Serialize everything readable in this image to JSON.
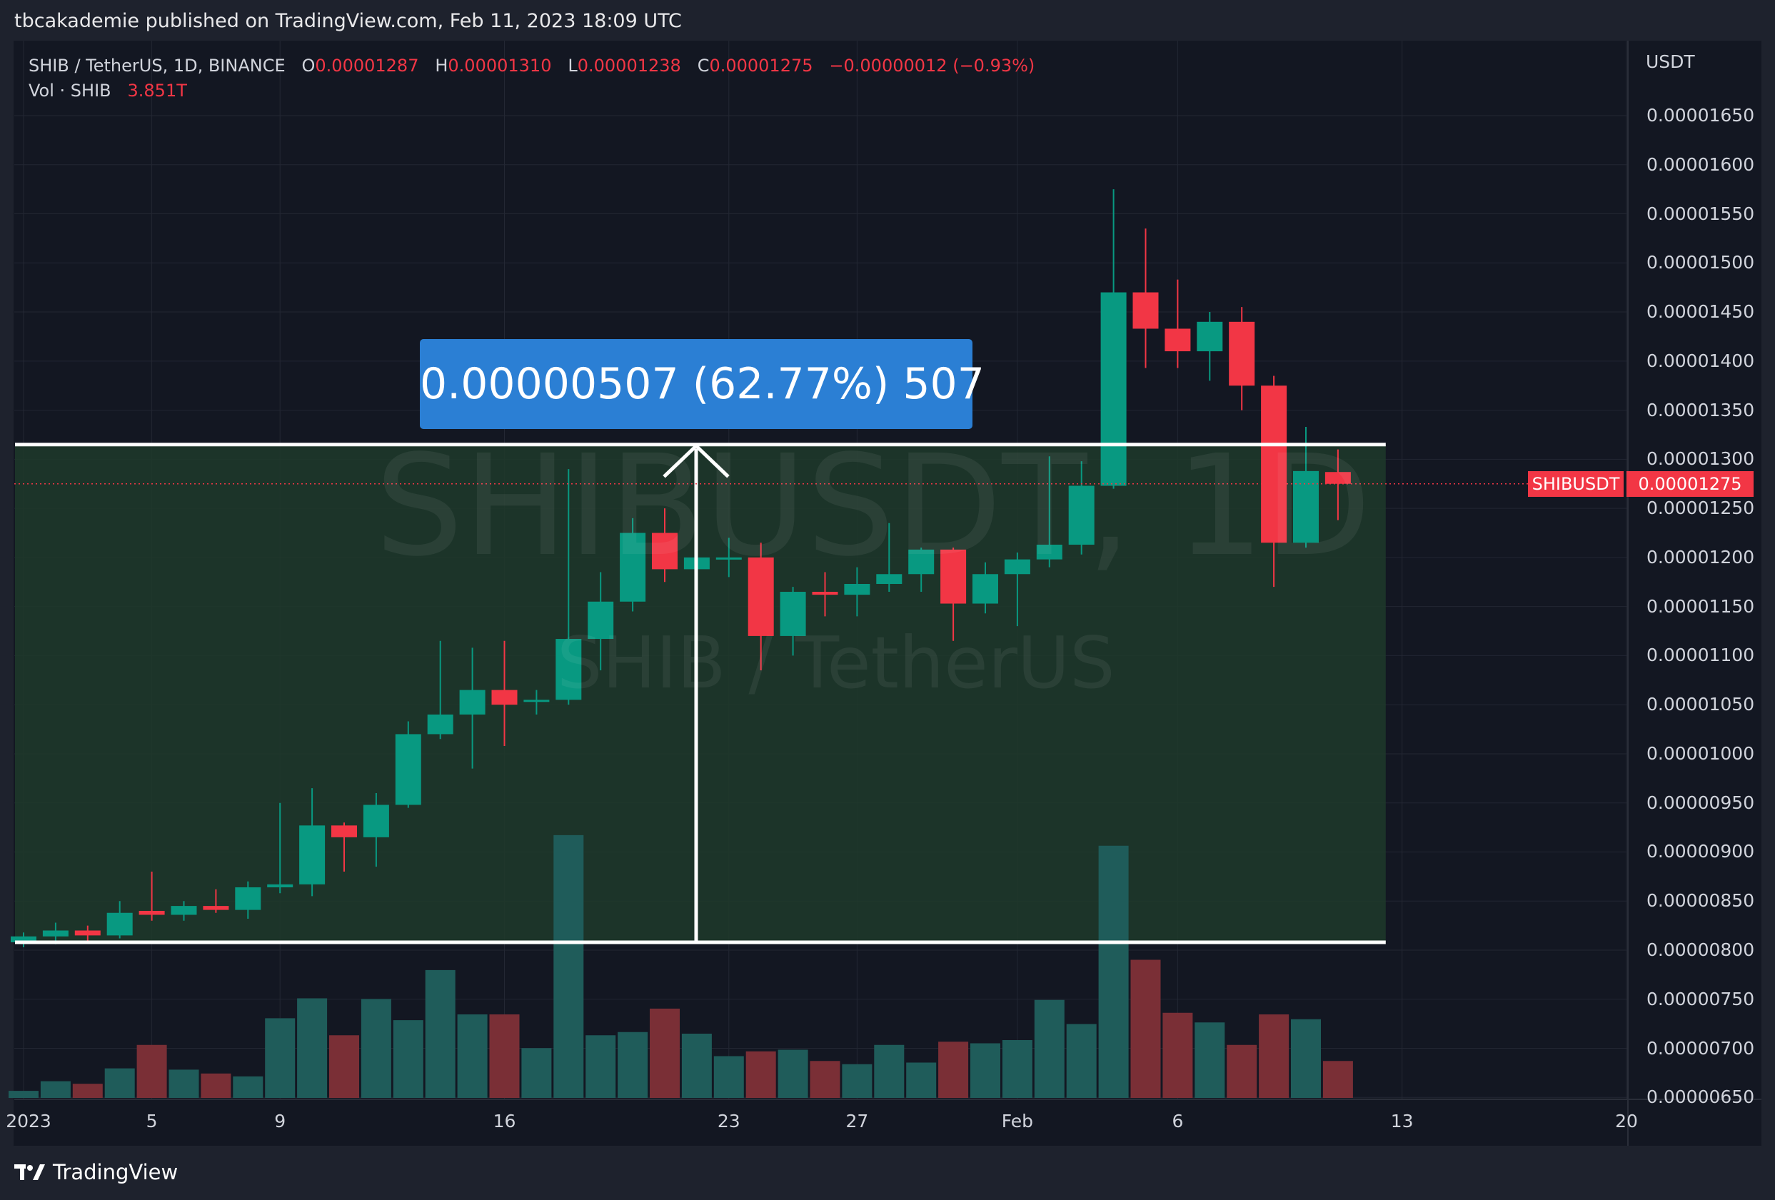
{
  "header": {
    "publisher_line": "tbcakademie published on TradingView.com, Feb 11, 2023 18:09 UTC"
  },
  "legend": {
    "symbol": "SHIB / TetherUS, 1D, BINANCE",
    "o_label": "O",
    "o_value": "0.00001287",
    "h_label": "H",
    "h_value": "0.00001310",
    "l_label": "L",
    "l_value": "0.00001238",
    "c_label": "C",
    "c_value": "0.00001275",
    "change": "−0.00000012 (−0.93%)",
    "vol_label": "Vol · SHIB",
    "vol_value": "3.851T"
  },
  "watermark": {
    "symbol": "SHIBUSDT, 1D",
    "description": "SHIB / TetherUS"
  },
  "measure_tool": {
    "label": "0.00000507 (62.77%) 507",
    "from_price": 8.08e-06,
    "to_price": 1.315e-05,
    "from_bar": 0,
    "to_bar": 42,
    "fill_color": "#1f3a2a"
  },
  "price_axis": {
    "currency": "USDT",
    "ticks": [
      {
        "value": 1.65e-05,
        "label": "0.00001650"
      },
      {
        "value": 1.6e-05,
        "label": "0.00001600"
      },
      {
        "value": 1.55e-05,
        "label": "0.00001550"
      },
      {
        "value": 1.5e-05,
        "label": "0.00001500"
      },
      {
        "value": 1.45e-05,
        "label": "0.00001450"
      },
      {
        "value": 1.4e-05,
        "label": "0.00001400"
      },
      {
        "value": 1.35e-05,
        "label": "0.00001350"
      },
      {
        "value": 1.3e-05,
        "label": "0.00001300"
      },
      {
        "value": 1.25e-05,
        "label": "0.00001250"
      },
      {
        "value": 1.2e-05,
        "label": "0.00001200"
      },
      {
        "value": 1.15e-05,
        "label": "0.00001150"
      },
      {
        "value": 1.1e-05,
        "label": "0.00001100"
      },
      {
        "value": 1.05e-05,
        "label": "0.00001050"
      },
      {
        "value": 1e-05,
        "label": "0.00001000"
      },
      {
        "value": 9.5e-06,
        "label": "0.00000950"
      },
      {
        "value": 9e-06,
        "label": "0.00000900"
      },
      {
        "value": 8.5e-06,
        "label": "0.00000850"
      },
      {
        "value": 8e-06,
        "label": "0.00000800"
      },
      {
        "value": 7.5e-06,
        "label": "0.00000750"
      },
      {
        "value": 7e-06,
        "label": "0.00000700"
      },
      {
        "value": 6.5e-06,
        "label": "0.00000650"
      }
    ],
    "symbol_label": "SHIBUSDT",
    "last_price_label": "0.00001275",
    "last_price": 1.275e-05
  },
  "time_axis": {
    "ticks": [
      {
        "bar": 0,
        "label": "2023"
      },
      {
        "bar": 4,
        "label": "5"
      },
      {
        "bar": 8,
        "label": "9"
      },
      {
        "bar": 15,
        "label": "16"
      },
      {
        "bar": 22,
        "label": "23"
      },
      {
        "bar": 26,
        "label": "27"
      },
      {
        "bar": 31,
        "label": "Feb"
      },
      {
        "bar": 36,
        "label": "6"
      },
      {
        "bar": 43,
        "label": "13"
      },
      {
        "bar": 50,
        "label": "20"
      }
    ]
  },
  "footer": {
    "brand": "TradingView"
  },
  "colors": {
    "up": "#089981",
    "down": "#f23645",
    "vol_up": "#1f5c5a",
    "vol_down": "#7a2f36",
    "background": "#131722"
  },
  "chart_data": {
    "type": "candlestick",
    "title": "SHIB / TetherUS, 1D, BINANCE",
    "ylabel": "USDT",
    "ylim": [
      6.3e-06,
      1.71e-05
    ],
    "candles": [
      {
        "date": "Jan 1",
        "o": 8.08e-06,
        "h": 8.18e-06,
        "l": 8.03e-06,
        "c": 8.14e-06,
        "v": 0.22
      },
      {
        "date": "Jan 2",
        "o": 8.14e-06,
        "h": 8.28e-06,
        "l": 8.06e-06,
        "c": 8.2e-06,
        "v": 0.52
      },
      {
        "date": "Jan 3",
        "o": 8.2e-06,
        "h": 8.25e-06,
        "l": 8.08e-06,
        "c": 8.15e-06,
        "v": 0.44
      },
      {
        "date": "Jan 4",
        "o": 8.15e-06,
        "h": 8.5e-06,
        "l": 8.12e-06,
        "c": 8.38e-06,
        "v": 0.92
      },
      {
        "date": "Jan 5",
        "o": 8.4e-06,
        "h": 8.8e-06,
        "l": 8.3e-06,
        "c": 8.36e-06,
        "v": 1.65
      },
      {
        "date": "Jan 6",
        "o": 8.36e-06,
        "h": 8.5e-06,
        "l": 8.3e-06,
        "c": 8.45e-06,
        "v": 0.88
      },
      {
        "date": "Jan 7",
        "o": 8.45e-06,
        "h": 8.62e-06,
        "l": 8.38e-06,
        "c": 8.41e-06,
        "v": 0.76
      },
      {
        "date": "Jan 8",
        "o": 8.41e-06,
        "h": 8.7e-06,
        "l": 8.32e-06,
        "c": 8.64e-06,
        "v": 0.67
      },
      {
        "date": "Jan 9",
        "o": 8.64e-06,
        "h": 9.5e-06,
        "l": 8.58e-06,
        "c": 8.67e-06,
        "v": 2.48
      },
      {
        "date": "Jan 10",
        "o": 8.67e-06,
        "h": 9.65e-06,
        "l": 8.55e-06,
        "c": 9.27e-06,
        "v": 3.1
      },
      {
        "date": "Jan 11",
        "o": 9.27e-06,
        "h": 9.3e-06,
        "l": 8.8e-06,
        "c": 9.15e-06,
        "v": 1.95
      },
      {
        "date": "Jan 12",
        "o": 9.15e-06,
        "h": 9.6e-06,
        "l": 8.85e-06,
        "c": 9.48e-06,
        "v": 3.08
      },
      {
        "date": "Jan 13",
        "o": 9.48e-06,
        "h": 1.033e-05,
        "l": 9.45e-06,
        "c": 1.02e-05,
        "v": 2.42
      },
      {
        "date": "Jan 14",
        "o": 1.02e-05,
        "h": 1.115e-05,
        "l": 1.015e-05,
        "c": 1.04e-05,
        "v": 3.98
      },
      {
        "date": "Jan 15",
        "o": 1.04e-05,
        "h": 1.108e-05,
        "l": 9.85e-06,
        "c": 1.065e-05,
        "v": 2.6
      },
      {
        "date": "Jan 16",
        "o": 1.065e-05,
        "h": 1.115e-05,
        "l": 1.008e-05,
        "c": 1.05e-05,
        "v": 2.6
      },
      {
        "date": "Jan 17",
        "o": 1.053e-05,
        "h": 1.065e-05,
        "l": 1.04e-05,
        "c": 1.055e-05,
        "v": 1.55
      },
      {
        "date": "Jan 18",
        "o": 1.055e-05,
        "h": 1.29e-05,
        "l": 1.05e-05,
        "c": 1.117e-05,
        "v": 8.18
      },
      {
        "date": "Jan 19",
        "o": 1.117e-05,
        "h": 1.185e-05,
        "l": 1.085e-05,
        "c": 1.155e-05,
        "v": 1.95
      },
      {
        "date": "Jan 20",
        "o": 1.155e-05,
        "h": 1.24e-05,
        "l": 1.145e-05,
        "c": 1.225e-05,
        "v": 2.05
      },
      {
        "date": "Jan 21",
        "o": 1.225e-05,
        "h": 1.25e-05,
        "l": 1.175e-05,
        "c": 1.188e-05,
        "v": 2.78
      },
      {
        "date": "Jan 22",
        "o": 1.188e-05,
        "h": 1.25e-05,
        "l": 1.155e-05,
        "c": 1.2e-05,
        "v": 2.0
      },
      {
        "date": "Jan 23",
        "o": 1.2e-05,
        "h": 1.22e-05,
        "l": 1.18e-05,
        "c": 1.2e-05,
        "v": 1.3
      },
      {
        "date": "Jan 24",
        "o": 1.2e-05,
        "h": 1.215e-05,
        "l": 1.085e-05,
        "c": 1.12e-05,
        "v": 1.45
      },
      {
        "date": "Jan 25",
        "o": 1.12e-05,
        "h": 1.17e-05,
        "l": 1.1e-05,
        "c": 1.165e-05,
        "v": 1.5
      },
      {
        "date": "Jan 26",
        "o": 1.165e-05,
        "h": 1.185e-05,
        "l": 1.14e-05,
        "c": 1.162e-05,
        "v": 1.15
      },
      {
        "date": "Jan 27",
        "o": 1.162e-05,
        "h": 1.19e-05,
        "l": 1.14e-05,
        "c": 1.173e-05,
        "v": 1.05
      },
      {
        "date": "Jan 28",
        "o": 1.173e-05,
        "h": 1.235e-05,
        "l": 1.165e-05,
        "c": 1.183e-05,
        "v": 1.65
      },
      {
        "date": "Jan 29",
        "o": 1.183e-05,
        "h": 1.21e-05,
        "l": 1.165e-05,
        "c": 1.208e-05,
        "v": 1.1
      },
      {
        "date": "Jan 30",
        "o": 1.208e-05,
        "h": 1.21e-05,
        "l": 1.115e-05,
        "c": 1.153e-05,
        "v": 1.75
      },
      {
        "date": "Jan 31",
        "o": 1.153e-05,
        "h": 1.195e-05,
        "l": 1.143e-05,
        "c": 1.183e-05,
        "v": 1.7
      },
      {
        "date": "Feb 1",
        "o": 1.183e-05,
        "h": 1.205e-05,
        "l": 1.13e-05,
        "c": 1.198e-05,
        "v": 1.8
      },
      {
        "date": "Feb 2",
        "o": 1.198e-05,
        "h": 1.303e-05,
        "l": 1.19e-05,
        "c": 1.213e-05,
        "v": 3.05
      },
      {
        "date": "Feb 3",
        "o": 1.213e-05,
        "h": 1.298e-05,
        "l": 1.203e-05,
        "c": 1.273e-05,
        "v": 2.3
      },
      {
        "date": "Feb 4",
        "o": 1.273e-05,
        "h": 1.575e-05,
        "l": 1.27e-05,
        "c": 1.47e-05,
        "v": 7.85
      },
      {
        "date": "Feb 5",
        "o": 1.47e-05,
        "h": 1.535e-05,
        "l": 1.393e-05,
        "c": 1.433e-05,
        "v": 4.3
      },
      {
        "date": "Feb 6",
        "o": 1.433e-05,
        "h": 1.483e-05,
        "l": 1.393e-05,
        "c": 1.41e-05,
        "v": 2.65
      },
      {
        "date": "Feb 7",
        "o": 1.41e-05,
        "h": 1.45e-05,
        "l": 1.38e-05,
        "c": 1.44e-05,
        "v": 2.35
      },
      {
        "date": "Feb 8",
        "o": 1.44e-05,
        "h": 1.455e-05,
        "l": 1.35e-05,
        "c": 1.375e-05,
        "v": 1.65
      },
      {
        "date": "Feb 9",
        "o": 1.375e-05,
        "h": 1.385e-05,
        "l": 1.17e-05,
        "c": 1.215e-05,
        "v": 2.6
      },
      {
        "date": "Feb 10",
        "o": 1.215e-05,
        "h": 1.333e-05,
        "l": 1.21e-05,
        "c": 1.288e-05,
        "v": 2.45
      },
      {
        "date": "Feb 11",
        "o": 1.287e-05,
        "h": 1.31e-05,
        "l": 1.238e-05,
        "c": 1.275e-05,
        "v": 1.15
      }
    ]
  }
}
